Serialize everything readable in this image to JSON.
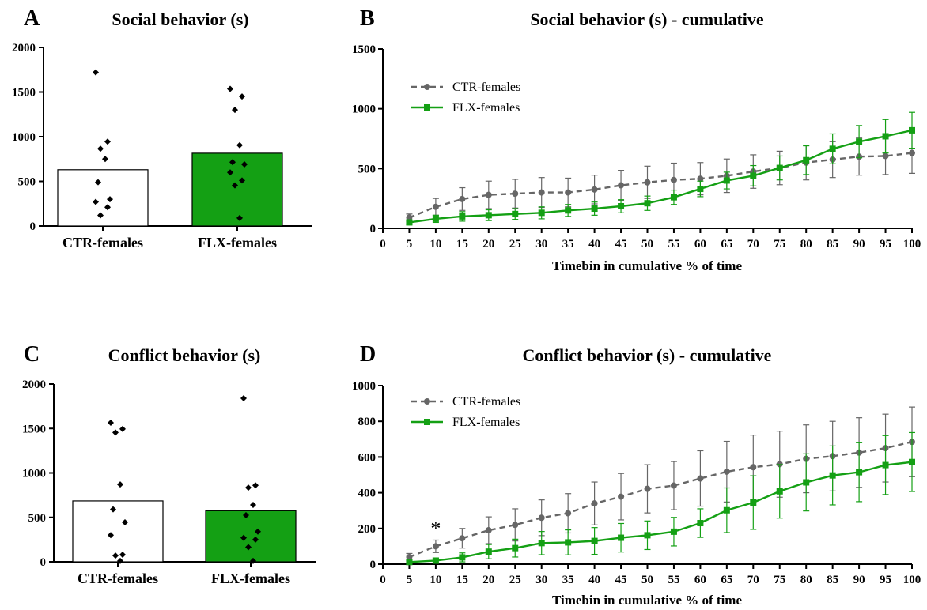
{
  "chart_data": [
    {
      "panel": "A",
      "type": "bar",
      "title": "Social behavior (s)",
      "categories": [
        "CTR-females",
        "FLX-females"
      ],
      "values": [
        630,
        815
      ],
      "colors": [
        "#ffffff",
        "#14a014"
      ],
      "ylim": [
        0,
        2000
      ],
      "yticks": [
        "0",
        "500",
        "1000",
        "1500",
        "2000"
      ],
      "points": [
        [
          1720,
          945,
          865,
          750,
          490,
          300,
          270,
          210,
          120
        ],
        [
          1535,
          1450,
          1300,
          905,
          715,
          690,
          600,
          510,
          455,
          90
        ]
      ]
    },
    {
      "panel": "B",
      "type": "line",
      "title": "Social behavior  (s) - cumulative",
      "xlabel": "Timebin in cumulative % of time",
      "x": [
        5,
        10,
        15,
        20,
        25,
        30,
        35,
        40,
        45,
        50,
        55,
        60,
        65,
        70,
        75,
        80,
        85,
        90,
        95,
        100
      ],
      "xticks": [
        "0",
        "5",
        "10",
        "15",
        "20",
        "25",
        "30",
        "35",
        "40",
        "45",
        "50",
        "55",
        "60",
        "65",
        "70",
        "75",
        "80",
        "85",
        "90",
        "95",
        "100"
      ],
      "ylim": [
        0,
        1500
      ],
      "yticks": [
        "0",
        "500",
        "1000",
        "1500"
      ],
      "legend": "top-left",
      "series": [
        {
          "name": "CTR-females",
          "color": "#666666",
          "marker": "circle",
          "dashed": true,
          "values": [
            90,
            180,
            245,
            280,
            290,
            300,
            300,
            325,
            360,
            385,
            405,
            415,
            440,
            475,
            505,
            550,
            575,
            600,
            605,
            630
          ],
          "err": [
            30,
            70,
            95,
            115,
            120,
            125,
            120,
            120,
            125,
            135,
            140,
            135,
            140,
            140,
            140,
            145,
            150,
            155,
            155,
            170
          ]
        },
        {
          "name": "FLX-females",
          "color": "#14a014",
          "marker": "square",
          "dashed": false,
          "values": [
            50,
            80,
            100,
            110,
            120,
            130,
            150,
            165,
            185,
            210,
            260,
            330,
            400,
            440,
            505,
            570,
            665,
            725,
            770,
            820
          ],
          "err": [
            20,
            30,
            40,
            45,
            45,
            50,
            50,
            55,
            55,
            60,
            60,
            65,
            70,
            85,
            100,
            120,
            125,
            135,
            140,
            150
          ]
        }
      ]
    },
    {
      "panel": "C",
      "type": "bar",
      "title": "Conflict behavior (s)",
      "categories": [
        "CTR-females",
        "FLX-females"
      ],
      "values": [
        685,
        575
      ],
      "colors": [
        "#ffffff",
        "#14a014"
      ],
      "ylim": [
        0,
        2000
      ],
      "yticks": [
        "0",
        "500",
        "1000",
        "1500",
        "2000"
      ],
      "points": [
        [
          1565,
          1495,
          1455,
          870,
          590,
          445,
          300,
          80,
          70,
          10
        ],
        [
          1840,
          860,
          835,
          640,
          525,
          340,
          270,
          250,
          165,
          10
        ]
      ]
    },
    {
      "panel": "D",
      "type": "line",
      "title": "Conflict behavior  (s) - cumulative",
      "xlabel": "Timebin in cumulative % of time",
      "x": [
        5,
        10,
        15,
        20,
        25,
        30,
        35,
        40,
        45,
        50,
        55,
        60,
        65,
        70,
        75,
        80,
        85,
        90,
        95,
        100
      ],
      "xticks": [
        "0",
        "5",
        "10",
        "15",
        "20",
        "25",
        "30",
        "35",
        "40",
        "45",
        "50",
        "55",
        "60",
        "65",
        "70",
        "75",
        "80",
        "85",
        "90",
        "95",
        "100"
      ],
      "ylim": [
        0,
        1000
      ],
      "yticks": [
        "0",
        "200",
        "400",
        "600",
        "800",
        "1000"
      ],
      "legend": "top-left",
      "annotation": {
        "text": "*",
        "x": 10
      },
      "series": [
        {
          "name": "CTR-females",
          "color": "#666666",
          "marker": "circle",
          "dashed": true,
          "values": [
            40,
            100,
            145,
            190,
            220,
            260,
            285,
            340,
            378,
            422,
            440,
            480,
            518,
            543,
            560,
            590,
            605,
            625,
            650,
            685
          ],
          "err": [
            20,
            35,
            55,
            75,
            90,
            100,
            110,
            120,
            130,
            135,
            135,
            155,
            170,
            180,
            185,
            190,
            195,
            195,
            190,
            195
          ]
        },
        {
          "name": "FLX-females",
          "color": "#14a014",
          "marker": "square",
          "dashed": false,
          "values": [
            12,
            20,
            38,
            70,
            90,
            118,
            122,
            130,
            148,
            162,
            182,
            230,
            302,
            345,
            408,
            458,
            497,
            515,
            555,
            572
          ],
          "err": [
            10,
            15,
            25,
            40,
            50,
            65,
            70,
            75,
            80,
            80,
            80,
            80,
            125,
            150,
            150,
            160,
            165,
            165,
            165,
            165
          ]
        }
      ]
    }
  ]
}
